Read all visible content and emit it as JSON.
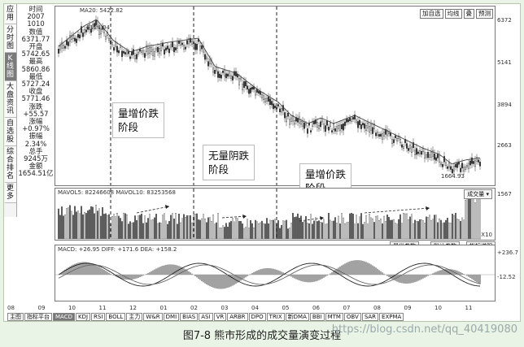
{
  "left_toolbar": [
    {
      "label": "应用",
      "active": false
    },
    {
      "label": "分时图",
      "active": false
    },
    {
      "label": "K线图",
      "active": true
    },
    {
      "label": "大盘资讯",
      "active": false
    },
    {
      "label": "自选股",
      "active": false
    },
    {
      "label": "综合排名",
      "active": false
    },
    {
      "label": "更多",
      "active": false
    }
  ],
  "info": {
    "time_label": "时间",
    "date_year": "2007",
    "date_md": "1010",
    "value_label": "数值",
    "value": "6371.77",
    "open_label": "开盘",
    "open": "5742.65",
    "high_label": "最高",
    "high": "5860.86",
    "low_label": "最低",
    "low": "5727.24",
    "close_label": "收盘",
    "close": "5771.46",
    "change_label": "涨跌",
    "change": "+55.57",
    "pct_label": "涨幅",
    "pct": "+0.97%",
    "amp_label": "振幅",
    "amp": "2.34%",
    "vol_label": "总手",
    "vol": "9245万",
    "amt_label": "金额",
    "amt": "1654.51亿"
  },
  "main_chart": {
    "ma_label": "MA20: 5422.82",
    "high_mark": "6124.04",
    "low_mark": "1664.93",
    "y_ticks": [
      "6372",
      "5141",
      "3894",
      "2663",
      "1567"
    ],
    "buttons": [
      "加自选",
      "均线",
      "叠",
      "预测"
    ]
  },
  "volume_chart": {
    "header": "MAVOL5: 82246608   MAVOL10: 83253568",
    "dropdown": "成交量",
    "x10": "X10",
    "buttons": [
      "最优参数",
      "默认参数",
      "指标说明"
    ]
  },
  "macd_chart": {
    "header": "MACD: +26.95   DIFF: +171.6   DEA: +158.2",
    "y_ticks": [
      "+236.7",
      "-12.52"
    ]
  },
  "boxes": [
    {
      "line1": "量增价跌",
      "line2": "阶段"
    },
    {
      "line1": "无量阴跌",
      "line2": "阶段"
    },
    {
      "line1": "量增价跌",
      "line2": "阶段"
    }
  ],
  "x_axis": [
    "08",
    "09",
    "10",
    "11",
    "12",
    "01",
    "02",
    "03",
    "04",
    "05",
    "06",
    "07",
    "08",
    "09",
    "10",
    "11"
  ],
  "tabs": [
    "主图",
    "指标平台",
    "MACD",
    "KDJ",
    "RSI",
    "BOLL",
    "主力",
    "W&R",
    "DMI",
    "BIAS",
    "ASI",
    "VR",
    "ARBR",
    "DPO",
    "TRIX",
    "新DMA",
    "BBI",
    "MTM",
    "OBV",
    "SAR",
    "EXPMA"
  ],
  "selected_tab": "MACD",
  "caption": "图7-8   熊市形成的成交量演变过程",
  "watermark": "https://blog.csdn.net/qq_40419080"
}
